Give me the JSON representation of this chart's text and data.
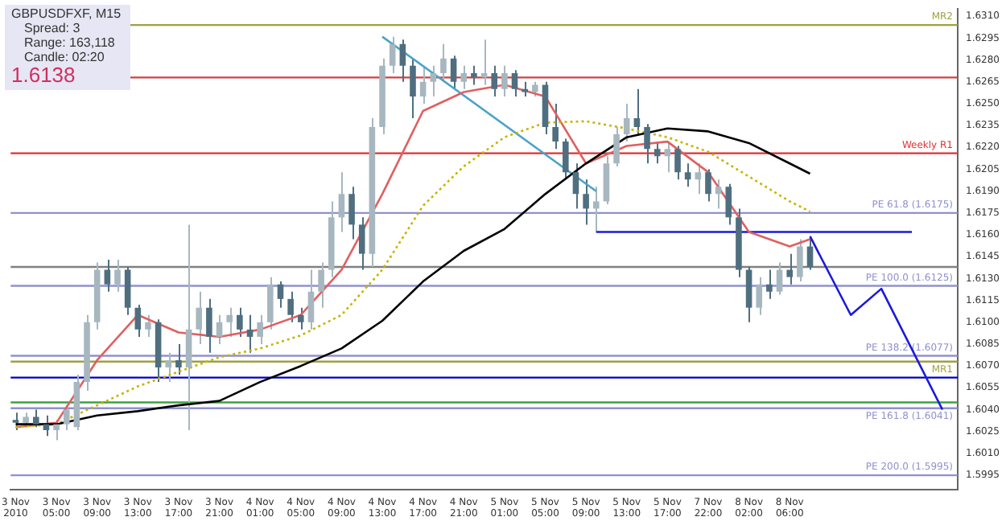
{
  "chart_data": {
    "type": "candlestick",
    "title": "GBPUSDFXF, M15",
    "annotations": [
      "Spread: 3",
      "Range: 163,118",
      "Candle: 02:20",
      "1.6138"
    ],
    "categories": [
      "3 Nov 2010",
      null,
      null,
      null,
      "3 Nov 05:00",
      null,
      null,
      null,
      "3 Nov 09:00",
      null,
      null,
      null,
      "3 Nov 13:00",
      null,
      null,
      null,
      "3 Nov 17:00",
      null,
      null,
      null,
      "3 Nov 21:00",
      null,
      null,
      null,
      "4 Nov 01:00",
      null,
      null,
      null,
      "4 Nov 05:00",
      null,
      null,
      null,
      "4 Nov 09:00",
      null,
      null,
      null,
      "4 Nov 13:00",
      null,
      null,
      null,
      "4 Nov 17:00",
      null,
      null,
      null,
      "4 Nov 21:00",
      null,
      null,
      null,
      "5 Nov 01:00",
      null,
      null,
      null,
      "5 Nov 05:00",
      null,
      null,
      null,
      "5 Nov 09:00",
      null,
      null,
      null,
      "5 Nov 13:00",
      null,
      null,
      null,
      "5 Nov 17:00",
      null,
      null,
      null,
      "7 Nov 22:00",
      null,
      null,
      null,
      "8 Nov 02:00",
      null,
      null,
      null,
      "8 Nov 06:00",
      null,
      null,
      null,
      null,
      null,
      null,
      null,
      null,
      null,
      null,
      null,
      null,
      null,
      null,
      null,
      null
    ],
    "colors": [
      "#4f6f80",
      "#a7b7c0",
      "#4f6f80",
      "#4f6f80",
      "#a7b7c0",
      "#a7b7c0",
      "#a7b7c0",
      "#a7b7c0",
      "#a7b7c0",
      "#4f6f80",
      "#a7b7c0",
      "#4f6f80",
      "#4f6f80",
      "#a7b7c0",
      "#4f6f80",
      "#a7b7c0",
      "#4f6f80",
      "#a7b7c0",
      "#a7b7c0",
      "#4f6f80",
      "#a7b7c0",
      "#a7b7c0",
      "#4f6f80",
      "#4f6f80",
      "#a7b7c0",
      "#a7b7c0",
      "#4f6f80",
      "#4f6f80",
      "#4f6f80",
      "#a7b7c0",
      "#a7b7c0",
      "#a7b7c0",
      "#a7b7c0",
      "#4f6f80",
      "#4f6f80",
      "#a7b7c0",
      "#a7b7c0",
      "#a7b7c0",
      "#4f6f80",
      "#4f6f80",
      "#a7b7c0",
      "#a7b7c0",
      "#a7b7c0",
      "#4f6f80",
      "#a7b7c0",
      "#4f6f80",
      "#a7b7c0",
      "#4f6f80",
      "#a7b7c0",
      "#4f6f80",
      "#4f6f80",
      "#a7b7c0",
      "#4f6f80",
      "#4f6f80",
      "#4f6f80",
      "#4f6f80",
      "#4f6f80",
      "#a7b7c0",
      "#a7b7c0",
      "#a7b7c0",
      "#a7b7c0",
      "#4f6f80",
      "#4f6f80",
      "#4f6f80",
      "#a7b7c0",
      "#4f6f80",
      "#4f6f80",
      "#a7b7c0",
      "#4f6f80",
      "#a7b7c0",
      "#4f6f80",
      "#4f6f80",
      "#4f6f80",
      "#a7b7c0",
      "#4f6f80",
      "#a7b7c0",
      "#4f6f80",
      "#a7b7c0",
      "#4f6f80",
      null,
      null,
      null,
      null,
      null,
      null,
      null,
      null,
      null,
      null,
      null,
      null,
      null,
      null
    ],
    "ohlc": [
      [
        1.6033,
        1.6038,
        1.6026,
        1.6031
      ],
      [
        1.6031,
        1.6038,
        1.6028,
        1.6035
      ],
      [
        1.6035,
        1.604,
        1.6028,
        1.603
      ],
      [
        1.603,
        1.6036,
        1.6022,
        1.6026
      ],
      [
        1.6026,
        1.6033,
        1.6019,
        1.603
      ],
      [
        1.603,
        1.6043,
        1.6026,
        1.604
      ],
      [
        1.6028,
        1.6064,
        1.6026,
        1.6059
      ],
      [
        1.6059,
        1.6105,
        1.6053,
        1.61
      ],
      [
        1.61,
        1.6141,
        1.6095,
        1.6136
      ],
      [
        1.6136,
        1.6143,
        1.6121,
        1.6126
      ],
      [
        1.6126,
        1.6143,
        1.6121,
        1.6136
      ],
      [
        1.6136,
        1.6138,
        1.6105,
        1.611
      ],
      [
        1.611,
        1.6112,
        1.609,
        1.6095
      ],
      [
        1.6095,
        1.6105,
        1.609,
        1.61
      ],
      [
        1.61,
        1.6102,
        1.6059,
        1.6069
      ],
      [
        1.6069,
        1.6079,
        1.6059,
        1.6074
      ],
      [
        1.6074,
        1.6085,
        1.6064,
        1.6069
      ],
      [
        1.6069,
        1.6167,
        1.6026,
        1.6095
      ],
      [
        1.6095,
        1.6121,
        1.6085,
        1.611
      ],
      [
        1.611,
        1.6116,
        1.6079,
        1.609
      ],
      [
        1.609,
        1.6105,
        1.6085,
        1.61
      ],
      [
        1.61,
        1.611,
        1.609,
        1.6105
      ],
      [
        1.6105,
        1.611,
        1.609,
        1.6095
      ],
      [
        1.6095,
        1.6105,
        1.6079,
        1.609
      ],
      [
        1.609,
        1.6105,
        1.6085,
        1.61
      ],
      [
        1.61,
        1.6131,
        1.6095,
        1.6126
      ],
      [
        1.6126,
        1.6128,
        1.611,
        1.6116
      ],
      [
        1.6116,
        1.6121,
        1.61,
        1.6105
      ],
      [
        1.6105,
        1.611,
        1.6095,
        1.61
      ],
      [
        1.61,
        1.6136,
        1.6095,
        1.6121
      ],
      [
        1.6121,
        1.6141,
        1.611,
        1.6136
      ],
      [
        1.6136,
        1.6183,
        1.6131,
        1.6172
      ],
      [
        1.6172,
        1.6203,
        1.6162,
        1.6188
      ],
      [
        1.6188,
        1.6193,
        1.6157,
        1.6167
      ],
      [
        1.6167,
        1.6172,
        1.6136,
        1.6147
      ],
      [
        1.6147,
        1.624,
        1.6138,
        1.6234
      ],
      [
        1.6234,
        1.6281,
        1.6229,
        1.6276
      ],
      [
        1.6276,
        1.6296,
        1.6271,
        1.6291
      ],
      [
        1.6291,
        1.6294,
        1.6265,
        1.6276
      ],
      [
        1.6276,
        1.6281,
        1.624,
        1.6255
      ],
      [
        1.6255,
        1.6276,
        1.625,
        1.6265
      ],
      [
        1.6265,
        1.6276,
        1.6255,
        1.6271
      ],
      [
        1.6271,
        1.6291,
        1.6265,
        1.6281
      ],
      [
        1.6281,
        1.6283,
        1.626,
        1.6265
      ],
      [
        1.6265,
        1.6276,
        1.626,
        1.6271
      ],
      [
        1.6271,
        1.6276,
        1.6263,
        1.6268
      ],
      [
        1.6268,
        1.6294,
        1.6263,
        1.6271
      ],
      [
        1.6271,
        1.6276,
        1.6255,
        1.626
      ],
      [
        1.626,
        1.6276,
        1.6255,
        1.6271
      ],
      [
        1.6271,
        1.6273,
        1.6255,
        1.626
      ],
      [
        1.626,
        1.6265,
        1.6255,
        1.6258
      ],
      [
        1.6258,
        1.6265,
        1.6255,
        1.6263
      ],
      [
        1.6263,
        1.6265,
        1.6229,
        1.6234
      ],
      [
        1.6234,
        1.625,
        1.6219,
        1.6224
      ],
      [
        1.6224,
        1.6226,
        1.6198,
        1.6203
      ],
      [
        1.6203,
        1.6209,
        1.6178,
        1.6188
      ],
      [
        1.6188,
        1.6198,
        1.6167,
        1.6178
      ],
      [
        1.6178,
        1.6193,
        1.6162,
        1.6183
      ],
      [
        1.6183,
        1.6214,
        1.6181,
        1.6209
      ],
      [
        1.6209,
        1.6234,
        1.6207,
        1.6229
      ],
      [
        1.6229,
        1.625,
        1.6224,
        1.624
      ],
      [
        1.624,
        1.626,
        1.6229,
        1.6234
      ],
      [
        1.6234,
        1.6236,
        1.6209,
        1.6219
      ],
      [
        1.6219,
        1.6224,
        1.6209,
        1.6214
      ],
      [
        1.6214,
        1.6224,
        1.6203,
        1.6219
      ],
      [
        1.6219,
        1.6221,
        1.6198,
        1.6203
      ],
      [
        1.6203,
        1.6209,
        1.6193,
        1.6198
      ],
      [
        1.6198,
        1.6209,
        1.6188,
        1.6203
      ],
      [
        1.6203,
        1.6205,
        1.6183,
        1.6188
      ],
      [
        1.6188,
        1.6198,
        1.6178,
        1.6193
      ],
      [
        1.6193,
        1.6195,
        1.6167,
        1.6172
      ],
      [
        1.6172,
        1.6178,
        1.6131,
        1.6136
      ],
      [
        1.6136,
        1.6138,
        1.61,
        1.611
      ],
      [
        1.611,
        1.6131,
        1.6105,
        1.6126
      ],
      [
        1.6126,
        1.6136,
        1.6116,
        1.6121
      ],
      [
        1.6121,
        1.6141,
        1.6119,
        1.6136
      ],
      [
        1.6136,
        1.6147,
        1.6126,
        1.6131
      ],
      [
        1.6131,
        1.6157,
        1.6128,
        1.6152
      ],
      [
        1.6152,
        1.6159,
        1.6136,
        1.6138
      ],
      null,
      null,
      null,
      null,
      null,
      null,
      null,
      null,
      null,
      null,
      null,
      null,
      null,
      null
    ],
    "series": [
      {
        "type": "line",
        "color": "#000000",
        "values": [
          1.603,
          null,
          null,
          null,
          1.603,
          null,
          null,
          null,
          1.6036,
          null,
          null,
          null,
          1.6039,
          null,
          null,
          null,
          1.6043,
          null,
          null,
          null,
          1.6046,
          null,
          null,
          null,
          1.6059,
          null,
          null,
          null,
          1.607,
          null,
          null,
          null,
          1.6082,
          null,
          null,
          null,
          1.6101,
          null,
          null,
          null,
          1.6128,
          null,
          null,
          null,
          1.6149,
          null,
          null,
          null,
          1.6164,
          null,
          null,
          null,
          1.6188,
          null,
          null,
          null,
          1.6209,
          null,
          null,
          null,
          1.6227,
          null,
          null,
          null,
          1.6233,
          null,
          null,
          null,
          1.6231,
          null,
          null,
          null,
          1.6223,
          null,
          null,
          null,
          1.6209,
          null,
          1.6202,
          null,
          null,
          null,
          null,
          null,
          null,
          null,
          null,
          null,
          null,
          null,
          null,
          null,
          null
        ]
      },
      {
        "type": "line",
        "color": "#c8b400",
        "line_style": "dotted",
        "values": [
          1.6028,
          null,
          null,
          null,
          1.603,
          null,
          null,
          null,
          1.6043,
          null,
          null,
          null,
          1.6056,
          null,
          null,
          null,
          1.6066,
          null,
          null,
          null,
          1.6076,
          null,
          null,
          null,
          1.6082,
          null,
          null,
          null,
          1.6091,
          null,
          null,
          null,
          1.6105,
          null,
          null,
          null,
          1.6136,
          null,
          null,
          null,
          1.618,
          null,
          null,
          null,
          1.6207,
          null,
          null,
          null,
          1.6227,
          null,
          null,
          null,
          1.6237,
          null,
          null,
          null,
          1.6238,
          null,
          null,
          null,
          1.6233,
          null,
          null,
          null,
          1.6227,
          null,
          null,
          null,
          1.6217,
          null,
          null,
          null,
          1.62,
          null,
          null,
          null,
          1.6183,
          null,
          1.6176,
          null,
          null,
          null,
          null,
          null,
          null,
          null,
          null,
          null,
          null,
          null,
          null,
          null,
          null
        ]
      },
      {
        "type": "line",
        "color": "#e06060",
        "values": [
          1.6028,
          null,
          null,
          null,
          1.6031,
          null,
          null,
          null,
          1.6074,
          null,
          null,
          null,
          1.6105,
          null,
          null,
          null,
          1.6093,
          null,
          null,
          null,
          1.609,
          null,
          null,
          null,
          1.6095,
          null,
          null,
          null,
          1.6105,
          null,
          null,
          null,
          1.6136,
          null,
          null,
          null,
          1.6188,
          null,
          null,
          null,
          1.6245,
          null,
          null,
          null,
          1.6258,
          null,
          null,
          null,
          1.6263,
          null,
          null,
          null,
          1.6255,
          null,
          null,
          null,
          1.6209,
          null,
          null,
          null,
          1.6221,
          null,
          null,
          null,
          1.6224,
          null,
          null,
          null,
          1.6203,
          null,
          null,
          null,
          1.6162,
          null,
          null,
          null,
          1.6152,
          null,
          1.6157,
          null,
          null,
          null,
          null,
          null,
          null,
          null,
          null,
          null,
          null,
          null,
          null,
          null,
          null
        ]
      },
      {
        "type": "line",
        "color": "#4aa3c8",
        "values": [
          null,
          null,
          null,
          null,
          null,
          null,
          null,
          null,
          null,
          null,
          null,
          null,
          null,
          null,
          null,
          null,
          null,
          null,
          null,
          null,
          null,
          null,
          null,
          null,
          null,
          null,
          null,
          null,
          null,
          null,
          null,
          null,
          null,
          null,
          null,
          null,
          1.6296,
          null,
          null,
          null,
          null,
          null,
          null,
          null,
          null,
          null,
          null,
          null,
          null,
          null,
          null,
          null,
          null,
          null,
          null,
          null,
          null,
          1.619,
          null,
          null,
          null,
          null,
          null,
          null,
          null,
          null,
          null,
          null,
          null,
          null,
          null,
          null,
          null,
          null,
          null,
          null,
          null,
          null,
          null,
          null,
          null,
          null,
          null,
          null,
          null,
          null,
          null,
          null,
          null,
          null,
          null,
          null,
          null
        ]
      },
      {
        "type": "line",
        "color": "#1a1adc",
        "values": [
          null,
          null,
          null,
          null,
          null,
          null,
          null,
          null,
          null,
          null,
          null,
          null,
          null,
          null,
          null,
          null,
          null,
          null,
          null,
          null,
          null,
          null,
          null,
          null,
          null,
          null,
          null,
          null,
          null,
          null,
          null,
          null,
          null,
          null,
          null,
          null,
          null,
          null,
          null,
          null,
          null,
          null,
          null,
          null,
          null,
          null,
          null,
          null,
          null,
          null,
          null,
          null,
          null,
          null,
          null,
          null,
          null,
          1.6162,
          null,
          null,
          null,
          null,
          null,
          null,
          null,
          null,
          null,
          null,
          null,
          null,
          null,
          null,
          null,
          null,
          null,
          null,
          null,
          null,
          null,
          null,
          null,
          null,
          null,
          null,
          null,
          null,
          null,
          null,
          1.6162,
          null,
          null,
          null,
          null
        ]
      },
      {
        "type": "line",
        "color": "#1a1adc",
        "values": [
          null,
          null,
          null,
          null,
          null,
          null,
          null,
          null,
          null,
          null,
          null,
          null,
          null,
          null,
          null,
          null,
          null,
          null,
          null,
          null,
          null,
          null,
          null,
          null,
          null,
          null,
          null,
          null,
          null,
          null,
          null,
          null,
          null,
          null,
          null,
          null,
          null,
          null,
          null,
          null,
          null,
          null,
          null,
          null,
          null,
          null,
          null,
          null,
          null,
          null,
          null,
          null,
          null,
          null,
          null,
          null,
          null,
          null,
          null,
          null,
          null,
          null,
          null,
          null,
          null,
          null,
          null,
          null,
          null,
          null,
          null,
          null,
          null,
          null,
          null,
          null,
          null,
          null,
          1.6159,
          null,
          null,
          null,
          1.6105,
          null,
          null,
          1.6123,
          null,
          null,
          null,
          null,
          null,
          1.604,
          null
        ]
      }
    ],
    "ref_lines": [
      {
        "axis": "y",
        "value": 1.6304,
        "label": "MR2",
        "color": "#a0a040"
      },
      {
        "axis": "y",
        "value": 1.6268,
        "color": "#d04040"
      },
      {
        "axis": "y",
        "value": 1.6216,
        "label": "Weekly R1",
        "color": "#e03030"
      },
      {
        "axis": "y",
        "value": 1.6175,
        "label": "PE 61.8 (1.6175)",
        "color": "#9090d0"
      },
      {
        "axis": "y",
        "value": 1.6138,
        "color": "#808080"
      },
      {
        "axis": "y",
        "value": 1.6125,
        "label": "PE 100.0 (1.6125)",
        "color": "#9090d0"
      },
      {
        "axis": "y",
        "value": 1.6077,
        "label": "PE 138.2 (1.6077)",
        "color": "#9090d0"
      },
      {
        "axis": "y",
        "value": 1.6073,
        "label": "MR1",
        "color": "#a0a040"
      },
      {
        "axis": "y",
        "value": 1.6062,
        "color": "#0000c8"
      },
      {
        "axis": "y",
        "value": 1.6045,
        "color": "#40a040"
      },
      {
        "axis": "y",
        "value": 1.6041,
        "label": "PE 161.8 (1.6041)",
        "color": "#9090d0"
      },
      {
        "axis": "y",
        "value": 1.5995,
        "label": "PE 200.0 (1.5995)",
        "color": "#9090d0"
      }
    ],
    "ylim": [
      1.5985,
      1.6315
    ],
    "yticks": [
      1.5995,
      {
        "value": 1.601,
        "label": "1.6010"
      },
      1.6025,
      {
        "value": 1.604,
        "label": "1.6040"
      },
      1.6055,
      {
        "value": 1.607,
        "label": "1.6070"
      },
      1.6085,
      {
        "value": 1.61,
        "label": "1.6100"
      },
      1.6115,
      {
        "value": 1.613,
        "label": "1.6130"
      },
      1.6145,
      {
        "value": 1.616,
        "label": "1.6160"
      },
      1.6175,
      {
        "value": 1.619,
        "label": "1.6190"
      },
      1.6205,
      {
        "value": 1.622,
        "label": "1.6220"
      },
      1.6235,
      {
        "value": 1.625,
        "label": "1.6250"
      },
      1.6265,
      {
        "value": 1.628,
        "label": "1.6280"
      },
      1.6295,
      {
        "value": 1.631,
        "label": "1.6310"
      }
    ]
  }
}
